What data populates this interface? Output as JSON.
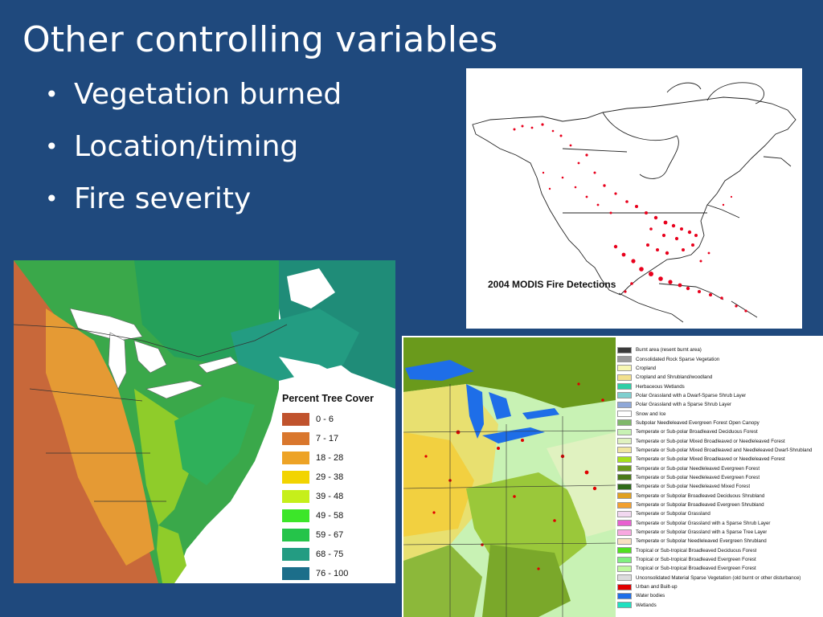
{
  "slide": {
    "title": "Other controlling variables",
    "bullets": [
      "Vegetation burned",
      "Location/timing",
      "Fire severity"
    ]
  },
  "fire_map": {
    "caption": "2004 MODIS Fire Detections",
    "fire_color": "#e8001c"
  },
  "tree_cover_map": {
    "legend_title": "Percent Tree Cover",
    "legend": [
      {
        "label": "0 - 6",
        "color": "#c0532d"
      },
      {
        "label": "7 - 17",
        "color": "#d9772d"
      },
      {
        "label": "18 - 28",
        "color": "#eda326"
      },
      {
        "label": "29 - 38",
        "color": "#f2d400"
      },
      {
        "label": "39 - 48",
        "color": "#c6ef1a"
      },
      {
        "label": "49 - 58",
        "color": "#3ce629"
      },
      {
        "label": "59 - 67",
        "color": "#25c44a"
      },
      {
        "label": "68 - 75",
        "color": "#239c82"
      },
      {
        "label": "76 - 100",
        "color": "#1c6e8a"
      }
    ]
  },
  "land_cover_map": {
    "legend": [
      {
        "label": "Burnt area (resent burnt area)",
        "color": "#3a3a3a"
      },
      {
        "label": "Consolidated Rock Sparse Vegetation",
        "color": "#9a9a9a"
      },
      {
        "label": "Cropland",
        "color": "#f8f8b4"
      },
      {
        "label": "Cropland and Shrubland/woodland",
        "color": "#f2e08e"
      },
      {
        "label": "Herbaceous Wetlands",
        "color": "#2ecfa6"
      },
      {
        "label": "Polar Grassland with a Dwarf-Sparse Shrub Layer",
        "color": "#7fcfcf"
      },
      {
        "label": "Polar Grassland with a Sparse Shrub Layer",
        "color": "#8fa8d8"
      },
      {
        "label": "Snow and Ice",
        "color": "#ffffff"
      },
      {
        "label": "Subpolar Needleleaved Evergreen Forest Open Canopy",
        "color": "#7fb86a"
      },
      {
        "label": "Temperate or Sub-polar Broadleaved Deciduous Forest",
        "color": "#c8f2b4"
      },
      {
        "label": "Temperate or Sub-polar Mixed Broadleaved or Needleleaved Forest",
        "color": "#e0f2c0"
      },
      {
        "label": "Temperate or Sub-polar Mixed Broadleaved and Needleleaved Dwarf-Shrubland",
        "color": "#f0e6a0"
      },
      {
        "label": "Temperate or Sub-polar Mixed Broadleaved or Needleleaved Forest",
        "color": "#a6e01c"
      },
      {
        "label": "Temperate or Sub-polar Needleleaved Evergreen Forest",
        "color": "#6a9a1c"
      },
      {
        "label": "Temperate or Sub-polar Needleleaved Evergreen Forest",
        "color": "#4a7a1a"
      },
      {
        "label": "Temperate or Sub-polar Needleleaved Mixed Forest",
        "color": "#2e6a1a"
      },
      {
        "label": "Temperate or Subpolar Broadleaved Deciduous Shrubland",
        "color": "#e0a020"
      },
      {
        "label": "Temperate or Subpolar Broadleaved Evergreen Shrubland",
        "color": "#f2a030"
      },
      {
        "label": "Temperate or Subpolar Grassland",
        "color": "#f2d8f0"
      },
      {
        "label": "Temperate or Subpolar Grassland with a Sparse Shrub Layer",
        "color": "#e860d0"
      },
      {
        "label": "Temperate or Subpolar Grassland with a Sparse Tree Layer",
        "color": "#f8a8e0"
      },
      {
        "label": "Temperate or Subpolar Needleleaved Evergreen Shrubland",
        "color": "#f8e0c0"
      },
      {
        "label": "Tropical or Sub-tropical Broadleaved Deciduous Forest",
        "color": "#50e020"
      },
      {
        "label": "Tropical or Sub-tropical Broadleaved Evergreen Forest",
        "color": "#80f080"
      },
      {
        "label": "Tropical or Sub-tropical Broadleaved Evergreen Forest",
        "color": "#c0f8a0"
      },
      {
        "label": "Unconsolidated Material Sparse Vegetation (old burnt or other disturbance)",
        "color": "#dcdcdc"
      },
      {
        "label": "Urban and Built-up",
        "color": "#e00000"
      },
      {
        "label": "Water bodies",
        "color": "#1e6ee8"
      },
      {
        "label": "Wetlands",
        "color": "#20e0c0"
      }
    ]
  }
}
